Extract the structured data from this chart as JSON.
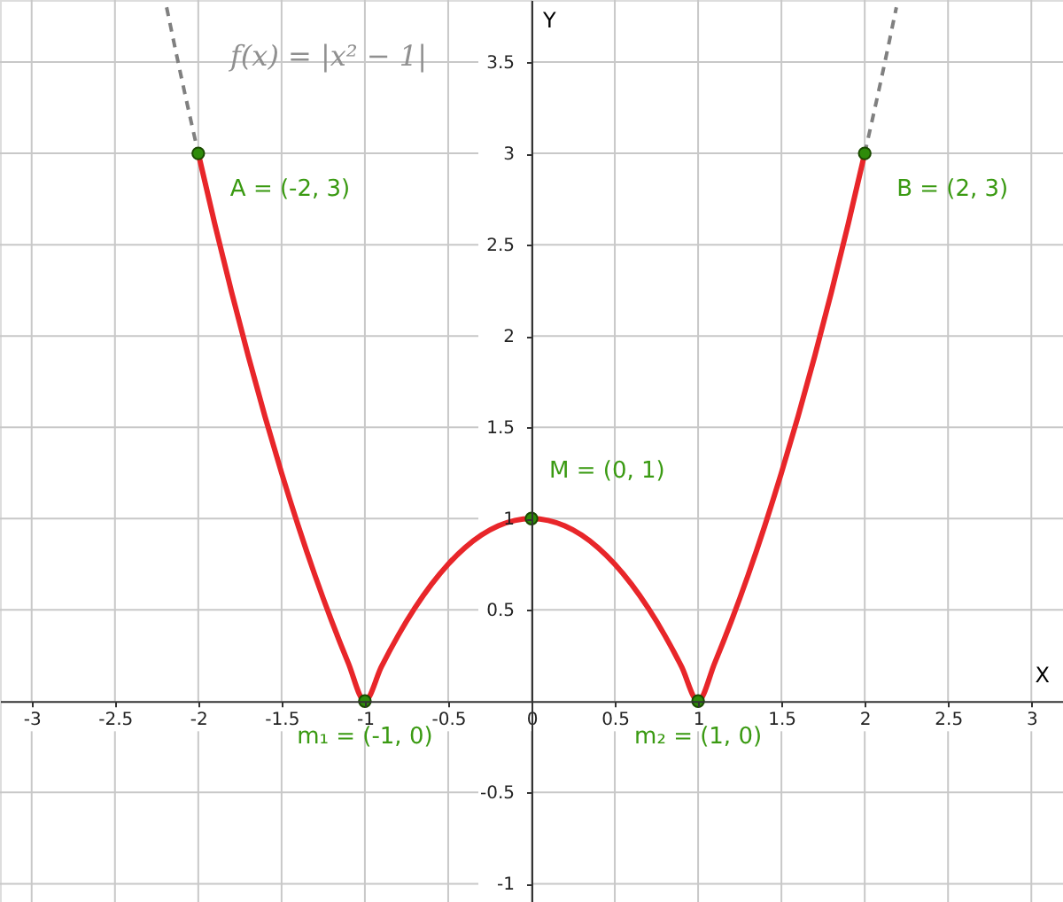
{
  "chart_data": {
    "type": "line",
    "xlabel": "X",
    "ylabel": "Y",
    "xlim": [
      -3.19,
      3.19
    ],
    "ylim": [
      -1.1,
      3.84
    ],
    "xticks": [
      -3,
      -2.5,
      -2,
      -1.5,
      -1,
      -0.5,
      0,
      0.5,
      1,
      1.5,
      2,
      2.5,
      3
    ],
    "yticks": [
      -1,
      -0.5,
      0.5,
      1,
      1.5,
      2,
      2.5,
      3,
      3.5
    ],
    "grid": true,
    "series": [
      {
        "type": "line",
        "color": "#808080",
        "line_style": "dashed",
        "x": [
          -2.19,
          -2.1,
          -2
        ],
        "values": [
          3.8,
          3.41,
          3
        ]
      },
      {
        "type": "line",
        "color": "#808080",
        "line_style": "dashed",
        "x": [
          2,
          2.1,
          2.19
        ],
        "values": [
          3,
          3.41,
          3.8
        ]
      },
      {
        "type": "line",
        "color": "#e8262a",
        "line_style": "solid",
        "x": [
          -2,
          -1.9,
          -1.8,
          -1.7,
          -1.6,
          -1.5,
          -1.4,
          -1.3,
          -1.2,
          -1.1,
          -1,
          -0.9,
          -0.8,
          -0.7,
          -0.6,
          -0.5,
          -0.4,
          -0.3,
          -0.2,
          -0.1,
          0,
          0.1,
          0.2,
          0.3,
          0.4,
          0.5,
          0.6,
          0.7,
          0.8,
          0.9,
          1,
          1.1,
          1.2,
          1.3,
          1.4,
          1.5,
          1.6,
          1.7,
          1.8,
          1.9,
          2
        ],
        "values": [
          3,
          2.61,
          2.24,
          1.89,
          1.56,
          1.25,
          0.96,
          0.69,
          0.44,
          0.21,
          0,
          0.19,
          0.36,
          0.51,
          0.64,
          0.75,
          0.84,
          0.91,
          0.96,
          0.99,
          1,
          0.99,
          0.96,
          0.91,
          0.84,
          0.75,
          0.64,
          0.51,
          0.36,
          0.19,
          0,
          0.21,
          0.44,
          0.69,
          0.96,
          1.25,
          1.56,
          1.89,
          2.24,
          2.61,
          3
        ]
      },
      {
        "type": "scatter",
        "color": "#2e8b0a",
        "marker": "circle",
        "x": [
          -2,
          -1,
          0,
          1,
          2
        ],
        "values": [
          3,
          0,
          1,
          0,
          3
        ]
      }
    ],
    "annotations": [
      "f(x) = |x² − 1|",
      {
        "text": "A = (-2, 3)",
        "x": -2,
        "y": 3
      },
      {
        "text": "m₁ = (-1, 0)",
        "x": -1,
        "y": 0
      },
      {
        "text": "M = (0, 1)",
        "x": 0,
        "y": 1
      },
      {
        "text": "m₂ = (1, 0)",
        "x": 1,
        "y": 0
      },
      {
        "text": "B = (2, 3)",
        "x": 2,
        "y": 3
      }
    ]
  }
}
